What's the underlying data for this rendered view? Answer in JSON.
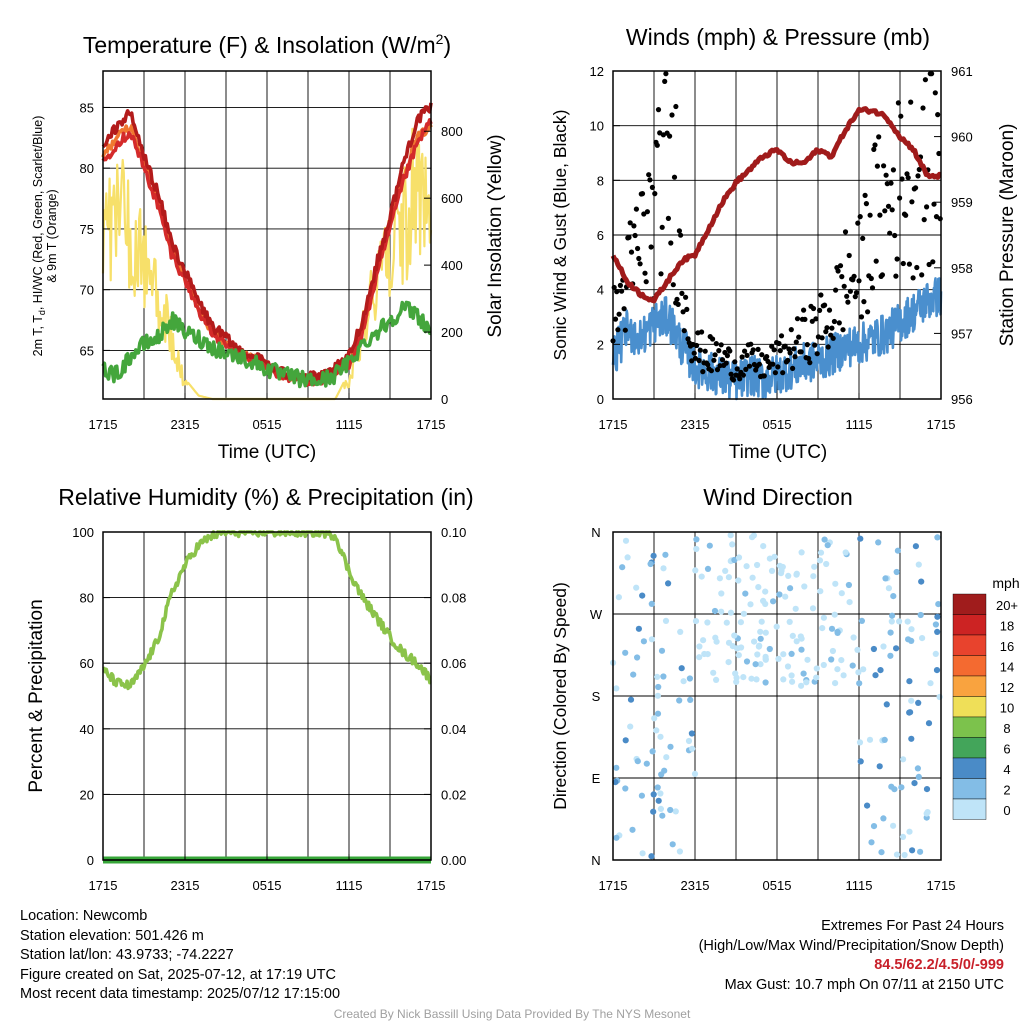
{
  "chart_data": [
    {
      "type": "line",
      "title": "Temperature (F) & Insolation (W/m2)",
      "title_main": "Temperature (F) & Insolation (W/m",
      "title_sup": "2",
      "title_end": ")",
      "xlabel": "Time (UTC)",
      "ylabel_line1": "2m T, T, HI/WC (Red, Green, Scarlet/Blue)",
      "ylabel_line2": "& 9m T (Orange)",
      "ylabel_pre": "2m T, T",
      "ylabel_sub": "d",
      "ylabel_post": ", HI/WC (Red, Green, Scarlet/Blue)",
      "ylabel_right": "Solar Insolation (Yellow)",
      "xticks": [
        "1715",
        "2315",
        "0515",
        "1115",
        "1715"
      ],
      "yticks_left": [
        65,
        70,
        75,
        80,
        85
      ],
      "yticks_right": [
        0,
        200,
        400,
        600,
        800
      ],
      "ylim_left": [
        61,
        88
      ],
      "ylim_right": [
        0,
        980
      ],
      "x_hours": [
        0,
        1,
        2,
        3,
        4,
        5,
        6,
        7,
        8,
        9,
        10,
        11,
        12,
        13,
        14,
        15,
        16,
        17,
        18,
        19,
        20,
        21,
        22,
        23,
        24
      ],
      "series": [
        {
          "name": "2m T",
          "color": "#b31b1b",
          "values": [
            81.5,
            83.5,
            84.5,
            81.0,
            78.0,
            74.0,
            71.5,
            69.0,
            67.0,
            66.0,
            65.0,
            64.5,
            64.0,
            63.2,
            63.0,
            62.8,
            62.8,
            63.5,
            64.5,
            67.5,
            72.0,
            76.0,
            80.5,
            84.0,
            85.0
          ]
        },
        {
          "name": "9m T",
          "color": "#f07830",
          "values": [
            81.0,
            82.5,
            83.5,
            80.5,
            77.5,
            73.5,
            71.0,
            68.5,
            66.5,
            65.5,
            64.8,
            64.3,
            63.8,
            63.0,
            62.8,
            62.6,
            62.6,
            63.2,
            64.0,
            66.8,
            71.5,
            75.5,
            79.5,
            82.5,
            83.5
          ]
        },
        {
          "name": "HI/WC",
          "color": "#d42a2a",
          "values": [
            80.5,
            82.0,
            83.0,
            80.0,
            77.0,
            73.0,
            70.8,
            68.3,
            66.4,
            65.4,
            64.7,
            64.2,
            63.7,
            62.9,
            62.7,
            62.5,
            62.5,
            63.1,
            63.9,
            66.5,
            71.0,
            75.0,
            79.0,
            82.0,
            84.0
          ]
        },
        {
          "name": "Td",
          "color": "#44a63c",
          "values": [
            63.5,
            63.0,
            64.5,
            65.5,
            66.0,
            67.5,
            66.5,
            66.0,
            65.3,
            64.8,
            64.5,
            64.0,
            63.5,
            63.0,
            62.8,
            62.5,
            62.5,
            63.0,
            64.0,
            65.5,
            66.5,
            67.5,
            68.5,
            68.0,
            66.5
          ]
        }
      ],
      "solar": {
        "name": "Solar Insolation",
        "color": "#f7e06a",
        "values": [
          780,
          760,
          700,
          560,
          420,
          250,
          60,
          10,
          0,
          0,
          0,
          0,
          0,
          0,
          0,
          0,
          0,
          0,
          80,
          300,
          480,
          620,
          760,
          850,
          900
        ]
      }
    },
    {
      "type": "scatter",
      "title": "Winds (mph) & Pressure (mb)",
      "xlabel": "Time (UTC)",
      "ylabel": "Sonic Wind & Gust (Blue, Black)",
      "ylabel_right": "Station Pressure (Maroon)",
      "xticks": [
        "1715",
        "2315",
        "0515",
        "1115",
        "1715"
      ],
      "yticks_left": [
        0,
        2,
        4,
        6,
        8,
        10,
        12
      ],
      "yticks_right": [
        956,
        957,
        958,
        959,
        960,
        961
      ],
      "ylim_left": [
        0,
        12
      ],
      "ylim_right": [
        956,
        961
      ],
      "x_hours": [
        0,
        1,
        2,
        3,
        4,
        5,
        6,
        7,
        8,
        9,
        10,
        11,
        12,
        13,
        14,
        15,
        16,
        17,
        18,
        19,
        20,
        21,
        22,
        23,
        24
      ],
      "wind_speed": {
        "name": "Sonic Wind",
        "color": "#4a8fce",
        "values": [
          1.5,
          2.5,
          2.2,
          2.8,
          3.0,
          2.0,
          1.2,
          1.0,
          0.8,
          0.6,
          0.9,
          0.7,
          0.9,
          1.1,
          1.3,
          1.4,
          1.6,
          1.9,
          2.0,
          2.2,
          2.4,
          2.8,
          3.2,
          3.6,
          3.8
        ]
      },
      "gust": {
        "name": "Gust",
        "color": "#000000",
        "values": [
          2.8,
          4.2,
          5.8,
          6.6,
          9.0,
          4.5,
          1.8,
          1.6,
          1.5,
          1.2,
          1.4,
          1.2,
          1.5,
          1.8,
          2.3,
          2.6,
          3.0,
          4.4,
          4.5,
          6.5,
          7.0,
          7.8,
          8.0,
          8.3,
          8.6
        ]
      },
      "gust_max": {
        "x_hour": 4.6,
        "value": 10.7
      },
      "pressure": {
        "name": "Station Pressure",
        "color": "#a01b1b",
        "values": [
          958.2,
          957.8,
          957.6,
          957.5,
          957.8,
          958.1,
          958.2,
          958.6,
          959.0,
          959.3,
          959.5,
          959.7,
          959.8,
          959.6,
          959.6,
          959.8,
          959.7,
          960.1,
          960.4,
          960.4,
          960.3,
          960.0,
          959.8,
          959.4,
          959.4
        ]
      }
    },
    {
      "type": "line",
      "title": "Relative Humidity (%) & Precipitation (in)",
      "xlabel": "",
      "ylabel": "Percent & Precipitation",
      "xticks": [
        "1715",
        "2315",
        "0515",
        "1115",
        "1715"
      ],
      "yticks_left": [
        0,
        20,
        40,
        60,
        80,
        100
      ],
      "yticks_right": [
        "0.00",
        "0.02",
        "0.04",
        "0.06",
        "0.08",
        "0.10"
      ],
      "ylim_left": [
        0,
        100
      ],
      "ylim_right": [
        0,
        0.1
      ],
      "x_hours": [
        0,
        1,
        2,
        3,
        4,
        5,
        6,
        7,
        8,
        9,
        10,
        11,
        12,
        13,
        14,
        15,
        16,
        17,
        18,
        19,
        20,
        21,
        22,
        23,
        24
      ],
      "series": [
        {
          "name": "Relative Humidity",
          "color": "#8bc34a",
          "values": [
            58,
            54,
            53,
            59,
            67,
            81,
            90,
            96,
            99,
            100,
            100,
            100,
            100,
            100,
            100,
            100,
            100,
            99,
            88,
            80,
            74,
            68,
            63,
            60,
            55
          ]
        },
        {
          "name": "Precipitation",
          "color": "#37a639",
          "values": [
            0,
            0,
            0,
            0,
            0,
            0,
            0,
            0,
            0,
            0,
            0,
            0,
            0,
            0,
            0,
            0,
            0,
            0,
            0,
            0,
            0,
            0,
            0,
            0,
            0
          ]
        }
      ]
    },
    {
      "type": "scatter",
      "title": "Wind Direction",
      "xlabel": "",
      "ylabel": "Direction (Colored By Speed)",
      "xticks": [
        "1715",
        "2315",
        "0515",
        "1115",
        "1715"
      ],
      "yticks": [
        "N",
        "E",
        "S",
        "W",
        "N"
      ],
      "ylim": [
        0,
        360
      ],
      "colorbar": {
        "unit": "mph",
        "labels": [
          "20+",
          "18",
          "16",
          "14",
          "12",
          "10",
          "8",
          "6",
          "4",
          "2",
          "0"
        ],
        "colors": [
          "#a01c1c",
          "#cc2323",
          "#e8432d",
          "#f46a30",
          "#f9a33f",
          "#efdf58",
          "#7cc24c",
          "#43a55a",
          "#4a8bc7",
          "#83bde6",
          "#bfe4f8"
        ]
      },
      "speed_colors": [
        "#bfe4f8",
        "#83bde6",
        "#4a8bc7"
      ]
    }
  ],
  "footer": {
    "location": "Location: Newcomb",
    "elevation": "Station elevation: 501.426 m",
    "latlon": "Station lat/lon: 43.9733; -74.2227",
    "created": "Figure created on Sat, 2025-07-12, at 17:19 UTC",
    "recent": "Most recent data timestamp: 2025/07/12 17:15:00",
    "extremes_title": "Extremes For Past 24 Hours",
    "extremes_legend": "(High/Low/Max Wind/Precipitation/Snow Depth)",
    "extremes_values": "84.5/62.2/4.5/0/-999",
    "max_gust": "Max Gust: 10.7 mph On 07/11 at 2150 UTC",
    "credit": "Created By Nick Bassill Using Data Provided By The NYS Mesonet"
  }
}
